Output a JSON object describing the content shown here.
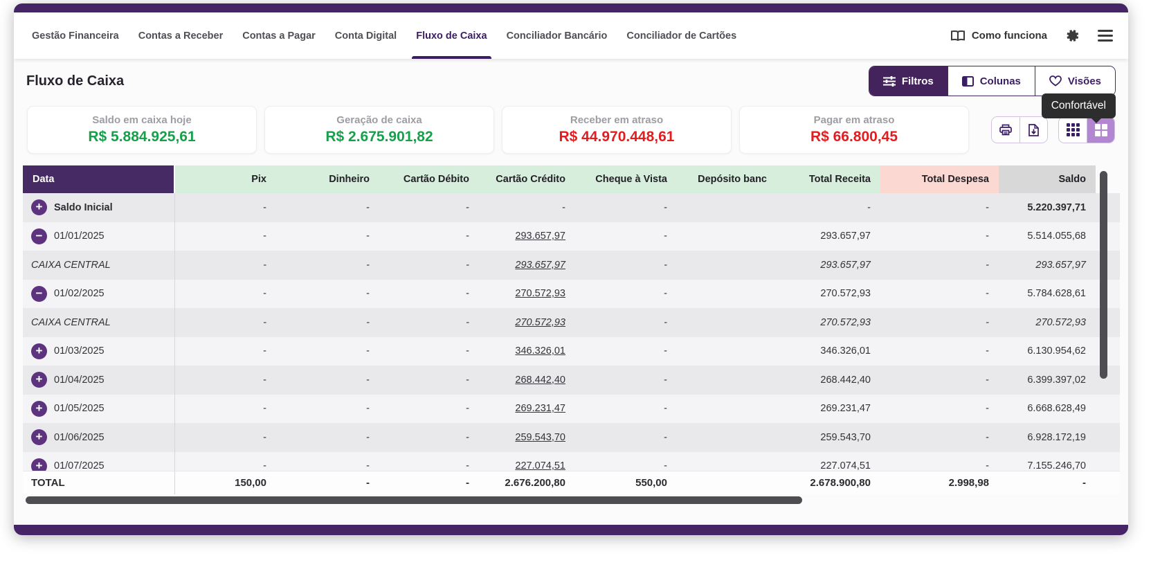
{
  "nav": {
    "tabs": [
      {
        "label": "Gestão Financeira",
        "active": false
      },
      {
        "label": "Contas a Receber",
        "active": false
      },
      {
        "label": "Contas a Pagar",
        "active": false
      },
      {
        "label": "Conta Digital",
        "active": false
      },
      {
        "label": "Fluxo de Caixa",
        "active": true
      },
      {
        "label": "Conciliador Bancário",
        "active": false
      },
      {
        "label": "Conciliador de Cartões",
        "active": false
      }
    ],
    "help_label": "Como funciona"
  },
  "page": {
    "title": "Fluxo de Caixa"
  },
  "toolbar": {
    "filtros_label": "Filtros",
    "colunas_label": "Colunas",
    "visoes_label": "Visões"
  },
  "tooltip": {
    "text": "Confortável"
  },
  "cards": [
    {
      "label": "Saldo em caixa hoje",
      "value": "R$ 5.884.925,61",
      "tone": "green"
    },
    {
      "label": "Geração de caixa",
      "value": "R$ 2.675.901,82",
      "tone": "green"
    },
    {
      "label": "Receber em atraso",
      "value": "R$ 44.970.448,61",
      "tone": "red"
    },
    {
      "label": "Pagar em atraso",
      "value": "R$ 66.800,45",
      "tone": "red"
    }
  ],
  "colors": {
    "brand_purple": "#462566",
    "header_purple": "#462a63",
    "toggle_purple": "#5d3380",
    "density_active": "#b286d1",
    "green_value": "#17a04a",
    "red_value": "#e21d1f",
    "header_green_bg": "#d8eedd",
    "header_pink_bg": "#fcd8d2",
    "header_gray_bg": "#d8d8d8"
  },
  "table": {
    "columns": [
      "Data",
      "Pix",
      "Dinheiro",
      "Cartão Débito",
      "Cartão Crédito",
      "Cheque à Vista",
      "Depósito banc",
      "Total Receita",
      "Total Despesa",
      "Saldo"
    ],
    "column_keys": [
      "pix",
      "dinheiro",
      "cartao-debito",
      "cartao-credito",
      "cheque-a-vista",
      "deposito-bancario",
      "total-receita",
      "total-despesa",
      "saldo"
    ],
    "rows": [
      {
        "toggle": "plus",
        "label": "Saldo Inicial",
        "bold": true,
        "italic": false,
        "values": [
          "-",
          "-",
          "-",
          "-",
          "-",
          "",
          "-",
          "-",
          "5.220.397,71"
        ],
        "link_col": -1,
        "bold_cols": [
          8
        ]
      },
      {
        "toggle": "minus",
        "label": "01/01/2025",
        "bold": false,
        "italic": false,
        "values": [
          "-",
          "-",
          "-",
          "293.657,97",
          "-",
          "",
          "293.657,97",
          "-",
          "5.514.055,68"
        ],
        "link_col": 3,
        "bold_cols": []
      },
      {
        "toggle": null,
        "label": "CAIXA CENTRAL",
        "bold": false,
        "italic": true,
        "values": [
          "-",
          "-",
          "-",
          "293.657,97",
          "-",
          "",
          "293.657,97",
          "-",
          "293.657,97"
        ],
        "link_col": 3,
        "bold_cols": []
      },
      {
        "toggle": "minus",
        "label": "01/02/2025",
        "bold": false,
        "italic": false,
        "values": [
          "-",
          "-",
          "-",
          "270.572,93",
          "-",
          "",
          "270.572,93",
          "-",
          "5.784.628,61"
        ],
        "link_col": 3,
        "bold_cols": []
      },
      {
        "toggle": null,
        "label": "CAIXA CENTRAL",
        "bold": false,
        "italic": true,
        "values": [
          "-",
          "-",
          "-",
          "270.572,93",
          "-",
          "",
          "270.572,93",
          "-",
          "270.572,93"
        ],
        "link_col": 3,
        "bold_cols": []
      },
      {
        "toggle": "plus",
        "label": "01/03/2025",
        "bold": false,
        "italic": false,
        "values": [
          "-",
          "-",
          "-",
          "346.326,01",
          "-",
          "",
          "346.326,01",
          "-",
          "6.130.954,62"
        ],
        "link_col": 3,
        "bold_cols": []
      },
      {
        "toggle": "plus",
        "label": "01/04/2025",
        "bold": false,
        "italic": false,
        "values": [
          "-",
          "-",
          "-",
          "268.442,40",
          "-",
          "",
          "268.442,40",
          "-",
          "6.399.397,02"
        ],
        "link_col": 3,
        "bold_cols": []
      },
      {
        "toggle": "plus",
        "label": "01/05/2025",
        "bold": false,
        "italic": false,
        "values": [
          "-",
          "-",
          "-",
          "269.231,47",
          "-",
          "",
          "269.231,47",
          "-",
          "6.668.628,49"
        ],
        "link_col": 3,
        "bold_cols": []
      },
      {
        "toggle": "plus",
        "label": "01/06/2025",
        "bold": false,
        "italic": false,
        "values": [
          "-",
          "-",
          "-",
          "259.543,70",
          "-",
          "",
          "259.543,70",
          "-",
          "6.928.172,19"
        ],
        "link_col": 3,
        "bold_cols": []
      },
      {
        "toggle": "plus",
        "label": "01/07/2025",
        "bold": false,
        "italic": false,
        "values": [
          "-",
          "-",
          "-",
          "227.074,51",
          "-",
          "",
          "227.074,51",
          "-",
          "7.155.246,70"
        ],
        "link_col": 3,
        "bold_cols": []
      }
    ],
    "total": {
      "label": "TOTAL",
      "values": [
        "150,00",
        "-",
        "-",
        "2.676.200,80",
        "550,00",
        "",
        "2.678.900,80",
        "2.998,98",
        "-"
      ]
    }
  }
}
